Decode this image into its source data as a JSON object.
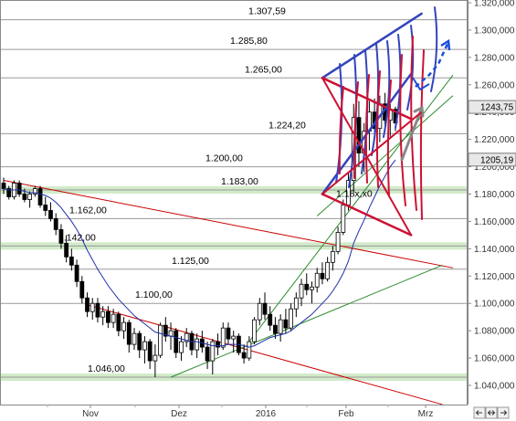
{
  "chart_data": {
    "type": "candlestick",
    "title": "",
    "xlabel": "",
    "ylabel": "",
    "ylim": [
      1030,
      1323
    ],
    "x_tick_labels": [
      "Nov",
      "Dez",
      "2016",
      "Feb",
      "Mrz"
    ],
    "y_tick_labels": [
      "1.040,000",
      "1.060,000",
      "1.080,000",
      "1.100,000",
      "1.120,000",
      "1.140,000",
      "1.160,000",
      "1.180,000",
      "1.200,000",
      "1.220,000",
      "1.240,000",
      "1.260,000",
      "1.280,000",
      "1.300,000",
      "1.320,000"
    ],
    "current_price_tags": [
      "1243,75",
      "1205,19"
    ],
    "level_labels": [
      "1.307,59",
      "1.285,80",
      "1.265,00",
      "1.224,20",
      "1.200,00",
      "1.183,00",
      "1.162,00",
      "1.142,00",
      "1.125,00",
      "1.100,00",
      "1.046,00",
      "1.18x,x0"
    ],
    "horizontal_levels": [
      1307.59,
      1285.8,
      1265.0,
      1224.2,
      1200.0,
      1183.0,
      1162.0,
      1142.0,
      1125.0,
      1100.0,
      1046.0
    ],
    "support_zones": [
      1183.0,
      1142.0,
      1046.0
    ],
    "series": [
      {
        "type": "candlestick",
        "ohlc": [
          [
            1188,
            1192,
            1180,
            1184
          ],
          [
            1184,
            1186,
            1176,
            1178
          ],
          [
            1178,
            1190,
            1176,
            1188
          ],
          [
            1188,
            1190,
            1178,
            1180
          ],
          [
            1180,
            1184,
            1174,
            1176
          ],
          [
            1176,
            1182,
            1170,
            1180
          ],
          [
            1180,
            1186,
            1178,
            1184
          ],
          [
            1184,
            1186,
            1170,
            1172
          ],
          [
            1172,
            1178,
            1164,
            1168
          ],
          [
            1168,
            1174,
            1160,
            1162
          ],
          [
            1162,
            1166,
            1150,
            1154
          ],
          [
            1154,
            1158,
            1140,
            1144
          ],
          [
            1144,
            1150,
            1130,
            1134
          ],
          [
            1134,
            1140,
            1124,
            1128
          ],
          [
            1128,
            1132,
            1112,
            1116
          ],
          [
            1116,
            1120,
            1100,
            1104
          ],
          [
            1104,
            1108,
            1090,
            1094
          ],
          [
            1094,
            1104,
            1088,
            1100
          ],
          [
            1100,
            1104,
            1086,
            1090
          ],
          [
            1090,
            1098,
            1084,
            1094
          ],
          [
            1094,
            1098,
            1082,
            1086
          ],
          [
            1086,
            1096,
            1082,
            1092
          ],
          [
            1092,
            1094,
            1076,
            1080
          ],
          [
            1080,
            1090,
            1074,
            1086
          ],
          [
            1086,
            1088,
            1064,
            1070
          ],
          [
            1070,
            1082,
            1066,
            1078
          ],
          [
            1078,
            1080,
            1060,
            1066
          ],
          [
            1066,
            1076,
            1056,
            1072
          ],
          [
            1072,
            1074,
            1052,
            1058
          ],
          [
            1058,
            1070,
            1046,
            1062
          ],
          [
            1062,
            1086,
            1060,
            1084
          ],
          [
            1084,
            1090,
            1072,
            1076
          ],
          [
            1076,
            1086,
            1066,
            1080
          ],
          [
            1080,
            1082,
            1060,
            1064
          ],
          [
            1064,
            1076,
            1058,
            1072
          ],
          [
            1072,
            1082,
            1068,
            1078
          ],
          [
            1078,
            1080,
            1062,
            1066
          ],
          [
            1066,
            1078,
            1060,
            1074
          ],
          [
            1074,
            1080,
            1064,
            1068
          ],
          [
            1068,
            1072,
            1052,
            1058
          ],
          [
            1058,
            1074,
            1048,
            1072
          ],
          [
            1072,
            1078,
            1062,
            1068
          ],
          [
            1068,
            1086,
            1066,
            1082
          ],
          [
            1082,
            1086,
            1070,
            1074
          ],
          [
            1074,
            1080,
            1064,
            1076
          ],
          [
            1076,
            1078,
            1062,
            1064
          ],
          [
            1064,
            1070,
            1056,
            1060
          ],
          [
            1060,
            1076,
            1058,
            1072
          ],
          [
            1072,
            1090,
            1070,
            1088
          ],
          [
            1088,
            1104,
            1084,
            1100
          ],
          [
            1100,
            1108,
            1088,
            1092
          ],
          [
            1092,
            1098,
            1080,
            1084
          ],
          [
            1084,
            1090,
            1074,
            1078
          ],
          [
            1078,
            1092,
            1072,
            1088
          ],
          [
            1088,
            1096,
            1078,
            1082
          ],
          [
            1082,
            1100,
            1080,
            1096
          ],
          [
            1096,
            1108,
            1090,
            1104
          ],
          [
            1104,
            1118,
            1098,
            1114
          ],
          [
            1114,
            1122,
            1106,
            1110
          ],
          [
            1110,
            1116,
            1100,
            1112
          ],
          [
            1112,
            1126,
            1108,
            1122
          ],
          [
            1122,
            1130,
            1114,
            1118
          ],
          [
            1118,
            1134,
            1116,
            1130
          ],
          [
            1130,
            1142,
            1124,
            1138
          ],
          [
            1138,
            1156,
            1136,
            1152
          ],
          [
            1152,
            1176,
            1150,
            1172
          ],
          [
            1172,
            1196,
            1168,
            1190
          ],
          [
            1190,
            1246,
            1182,
            1236
          ],
          [
            1236,
            1248,
            1200,
            1210
          ],
          [
            1210,
            1232,
            1196,
            1226
          ],
          [
            1226,
            1248,
            1212,
            1240
          ],
          [
            1240,
            1250,
            1220,
            1228
          ],
          [
            1228,
            1252,
            1218,
            1246
          ],
          [
            1246,
            1254,
            1226,
            1234
          ],
          [
            1234,
            1246,
            1222,
            1242
          ],
          [
            1242,
            1244,
            1226,
            1232
          ]
        ]
      }
    ],
    "moving_average": [
      1184,
      1183,
      1183,
      1183,
      1182,
      1181,
      1181,
      1180,
      1179,
      1177,
      1174,
      1170,
      1165,
      1160,
      1154,
      1147,
      1139,
      1132,
      1125,
      1119,
      1113,
      1108,
      1103,
      1099,
      1095,
      1091,
      1088,
      1085,
      1082,
      1079,
      1078,
      1077,
      1076,
      1075,
      1074,
      1073,
      1072,
      1072,
      1071,
      1070,
      1069,
      1069,
      1069,
      1070,
      1070,
      1070,
      1069,
      1068,
      1069,
      1071,
      1073,
      1075,
      1076,
      1077,
      1078,
      1080,
      1083,
      1086,
      1089,
      1092,
      1096,
      1100,
      1104,
      1109,
      1115,
      1122,
      1131,
      1144,
      1153,
      1161,
      1170,
      1178,
      1186,
      1193,
      1200,
      1205
    ],
    "trend_lines": [
      {
        "color": "#cc0000",
        "from": [
          0,
          1190
        ],
        "to": [
          86,
          1126
        ]
      },
      {
        "color": "#cc0000",
        "from": [
          16,
          1099
        ],
        "to": [
          84,
          1026
        ]
      },
      {
        "color": "#2e8b2e",
        "from": [
          32,
          1046
        ],
        "to": [
          84,
          1128
        ]
      },
      {
        "color": "#2e8b2e",
        "from": [
          47,
          1072
        ],
        "to": [
          86,
          1267
        ]
      },
      {
        "color": "#2e8b2e",
        "from": [
          60,
          1164
        ],
        "to": [
          86,
          1252
        ]
      }
    ],
    "drawn_channels": [
      {
        "color": "#3344bb",
        "from": [
          61,
          1180
        ],
        "to": [
          78,
          1268
        ]
      },
      {
        "color": "#3344bb",
        "from": [
          61,
          1265
        ],
        "to": [
          80,
          1312
        ]
      },
      {
        "color": "#cc1133",
        "from": [
          61,
          1180
        ],
        "to": [
          78,
          1150
        ]
      },
      {
        "color": "#cc1133",
        "from": [
          61,
          1265
        ],
        "to": [
          78,
          1235
        ]
      }
    ],
    "grid": true,
    "legend": "none"
  }
}
